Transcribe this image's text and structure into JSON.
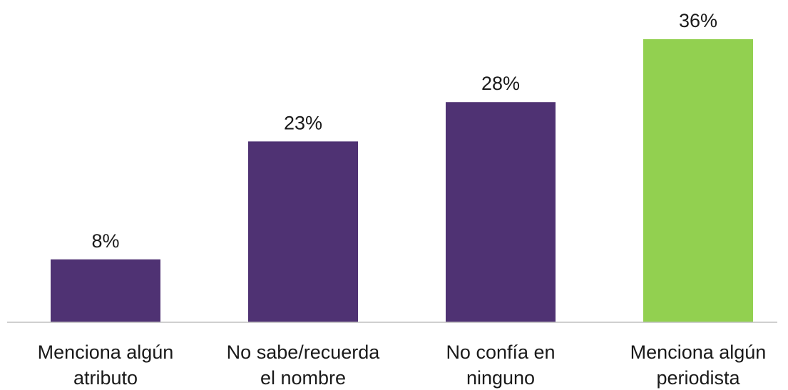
{
  "chart_data": {
    "type": "bar",
    "categories": [
      [
        "Menciona algún",
        "atributo"
      ],
      [
        "No sabe/recuerda",
        "el nombre"
      ],
      [
        "No confía en",
        "ninguno"
      ],
      [
        "Menciona algún",
        "periodista"
      ]
    ],
    "values": [
      8,
      23,
      28,
      36
    ],
    "value_labels": [
      "8%",
      "23%",
      "28%",
      "36%"
    ],
    "unit": "%",
    "ylim": [
      0,
      36
    ],
    "colors": [
      "#4f3273",
      "#4f3273",
      "#4f3273",
      "#92d050"
    ],
    "grid": false,
    "legend": "none",
    "title": "",
    "xlabel": "",
    "ylabel": ""
  }
}
